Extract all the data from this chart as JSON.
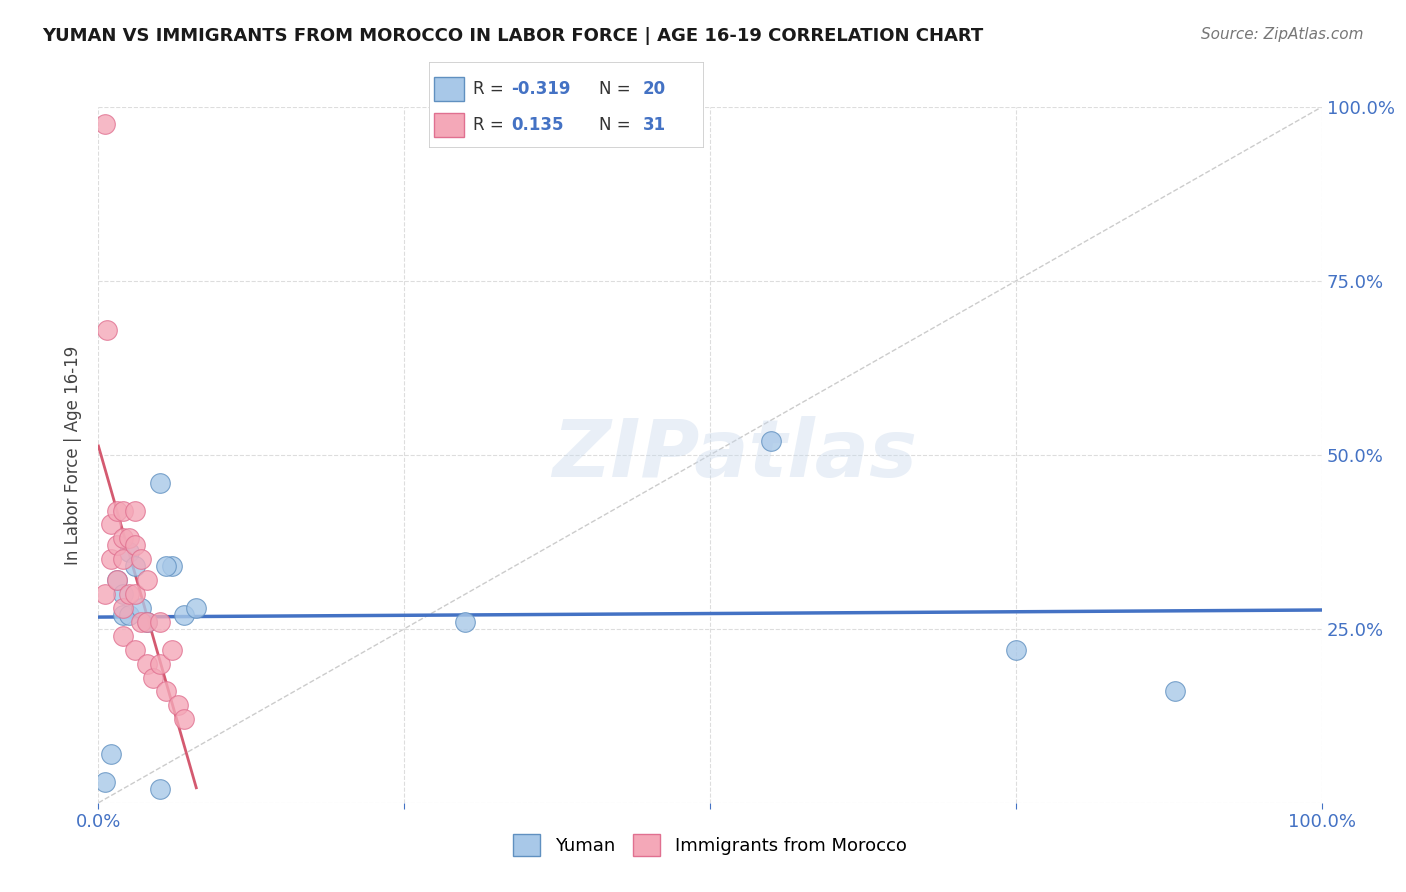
{
  "title": "YUMAN VS IMMIGRANTS FROM MOROCCO IN LABOR FORCE | AGE 16-19 CORRELATION CHART",
  "source": "Source: ZipAtlas.com",
  "ylabel": "In Labor Force | Age 16-19",
  "xlim": [
    0.0,
    1.0
  ],
  "ylim": [
    0.0,
    1.0
  ],
  "blue_R": -0.319,
  "blue_N": 20,
  "pink_R": 0.135,
  "pink_N": 31,
  "blue_color": "#A8C8E8",
  "pink_color": "#F4A8B8",
  "blue_edge_color": "#6090C0",
  "pink_edge_color": "#E07090",
  "blue_line_color": "#4472C4",
  "pink_line_color": "#D45A70",
  "title_color": "#1a1a1a",
  "axis_label_color": "#444444",
  "tick_color": "#4472C4",
  "grid_color": "#DDDDDD",
  "identity_line_color": "#CCCCCC",
  "watermark": "ZIPatlas",
  "background_color": "#FFFFFF",
  "blue_x": [
    0.005,
    0.01,
    0.015,
    0.02,
    0.02,
    0.025,
    0.025,
    0.03,
    0.035,
    0.04,
    0.05,
    0.06,
    0.055,
    0.07,
    0.08,
    0.3,
    0.55,
    0.75,
    0.88,
    0.05
  ],
  "blue_y": [
    0.03,
    0.07,
    0.32,
    0.3,
    0.27,
    0.36,
    0.27,
    0.34,
    0.28,
    0.26,
    0.46,
    0.34,
    0.34,
    0.27,
    0.28,
    0.26,
    0.52,
    0.22,
    0.16,
    0.02
  ],
  "pink_x": [
    0.005,
    0.005,
    0.007,
    0.01,
    0.01,
    0.015,
    0.015,
    0.015,
    0.02,
    0.02,
    0.02,
    0.02,
    0.02,
    0.025,
    0.025,
    0.03,
    0.03,
    0.03,
    0.03,
    0.035,
    0.035,
    0.04,
    0.04,
    0.04,
    0.045,
    0.05,
    0.05,
    0.055,
    0.06,
    0.065,
    0.07
  ],
  "pink_y": [
    0.975,
    0.3,
    0.68,
    0.4,
    0.35,
    0.42,
    0.37,
    0.32,
    0.42,
    0.38,
    0.35,
    0.28,
    0.24,
    0.38,
    0.3,
    0.42,
    0.37,
    0.3,
    0.22,
    0.35,
    0.26,
    0.32,
    0.26,
    0.2,
    0.18,
    0.26,
    0.2,
    0.16,
    0.22,
    0.14,
    0.12
  ]
}
